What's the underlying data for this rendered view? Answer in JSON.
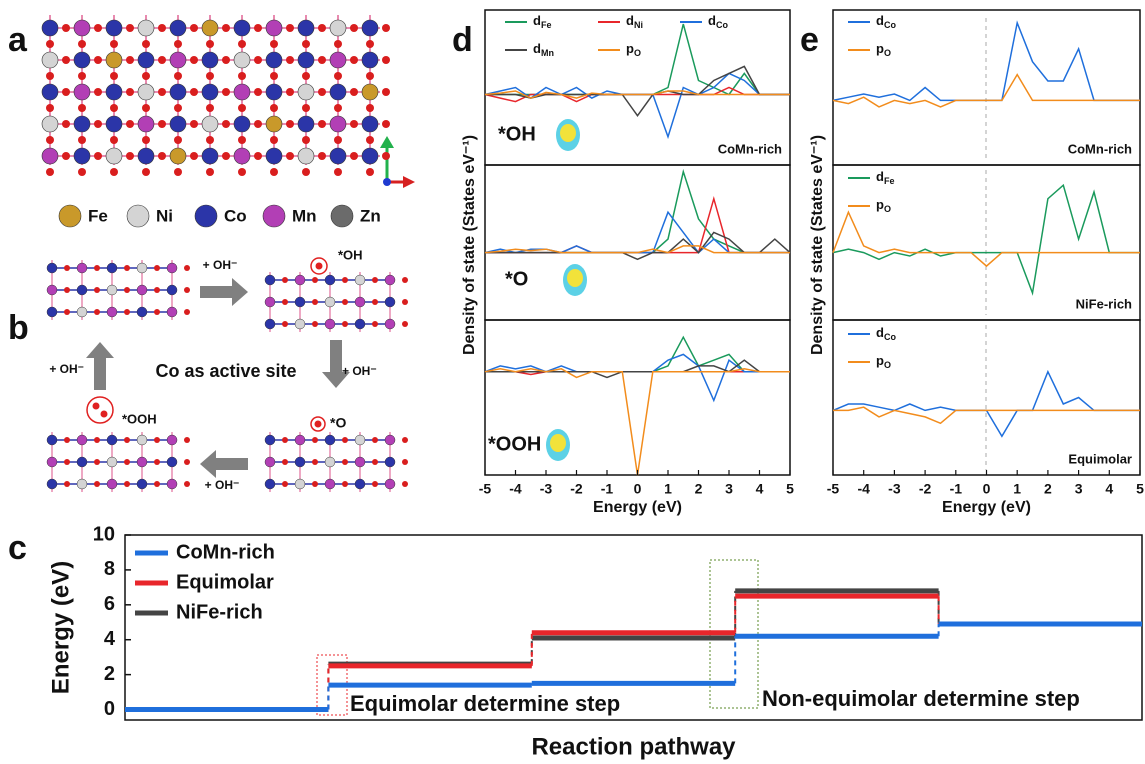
{
  "panel_labels": [
    "a",
    "b",
    "c",
    "d",
    "e"
  ],
  "panel_a": {
    "legend": [
      "Fe",
      "Ni",
      "Co",
      "Mn",
      "Zn"
    ],
    "colors": [
      "#c9992a",
      "#d4d4d4",
      "#2b35a8",
      "#b23fb5",
      "#6b6b6b"
    ]
  },
  "panel_b": {
    "steps": [
      "+ OH⁻",
      "+ OH⁻",
      "+ OH⁻",
      "+ OH⁻"
    ],
    "intermediates": [
      "*OH",
      "*O",
      "*OOH"
    ],
    "center": "Co as active site"
  },
  "chart_data": [
    {
      "type": "step",
      "ylabel": "Energy (eV)",
      "xlabel": "Reaction pathway",
      "categories": [
        null,
        null,
        null,
        null,
        null
      ],
      "ylim": [
        -0.6,
        10
      ],
      "yticks": [
        0,
        2,
        4,
        6,
        8,
        10
      ],
      "series": [
        {
          "name": "CoMn-rich",
          "color": "#1f6fdc",
          "values": [
            0,
            1.4,
            1.5,
            4.2,
            4.9
          ]
        },
        {
          "name": "Equimolar",
          "color": "#e8262b",
          "values": [
            0,
            2.5,
            4.4,
            6.5,
            4.9
          ]
        },
        {
          "name": "NiFe-rich",
          "color": "#444444",
          "values": [
            0,
            2.6,
            4.1,
            6.8,
            4.9
          ]
        }
      ],
      "annotations": [
        {
          "text": "Equimolar determine step",
          "color": "#e8262b"
        },
        {
          "text": "Non-equimolar determine step",
          "color": "#5a8a2a"
        }
      ]
    },
    {
      "type": "line",
      "ylabel": "Density of  state (States eV⁻¹)",
      "inset": "*OH",
      "label": "CoMn-rich",
      "x": [
        -5,
        -4.5,
        -4,
        -3.5,
        -3,
        -2.5,
        -2,
        -1.5,
        -1,
        -0.5,
        0,
        0.5,
        1,
        1.5,
        2,
        2.5,
        3,
        3.5,
        4,
        4.5,
        5
      ],
      "xlim": [
        -5,
        5
      ],
      "ylim": [
        -1,
        1.2
      ],
      "series": [
        {
          "name": "d",
          "sub": "Fe",
          "color": "#1a9a5c",
          "values": [
            0,
            0,
            0,
            0,
            0,
            0,
            0,
            0,
            0,
            0,
            0,
            0,
            0.1,
            1.0,
            0.2,
            0.1,
            0,
            0.3,
            0,
            0,
            0
          ]
        },
        {
          "name": "d",
          "sub": "Ni",
          "color": "#e8262b",
          "values": [
            0,
            -0.05,
            -0.1,
            0,
            0,
            0,
            -0.1,
            0,
            0,
            0,
            0,
            0,
            0,
            0,
            0,
            0,
            0.1,
            0,
            0,
            0,
            0
          ]
        },
        {
          "name": "d",
          "sub": "Co",
          "color": "#1f6fdc",
          "values": [
            0,
            0.05,
            0.1,
            -0.05,
            0.1,
            0,
            0.1,
            -0.05,
            0.05,
            0,
            0,
            0,
            -0.6,
            0.1,
            0,
            0.1,
            0.3,
            0.2,
            0,
            0,
            0
          ]
        },
        {
          "name": "d",
          "sub": "Mn",
          "color": "#444444",
          "values": [
            0,
            0,
            0,
            -0.05,
            0,
            0,
            0,
            0,
            0,
            0,
            -0.3,
            0,
            0.05,
            0,
            0,
            0.2,
            0.3,
            0.4,
            0,
            0,
            0
          ]
        },
        {
          "name": "p",
          "sub": "O",
          "color": "#f28c1c",
          "values": [
            0,
            0.02,
            0.05,
            -0.05,
            0.03,
            0,
            -0.05,
            0.02,
            0,
            0,
            0,
            0,
            0.05,
            0.05,
            0,
            0,
            0,
            0,
            0,
            0,
            0
          ]
        }
      ]
    },
    {
      "type": "line",
      "inset": "*O",
      "x": [
        -5,
        -4.5,
        -4,
        -3.5,
        -3,
        -2.5,
        -2,
        -1.5,
        -1,
        -0.5,
        0,
        0.5,
        1,
        1.5,
        2,
        2.5,
        3,
        3.5,
        4,
        4.5,
        5
      ],
      "xlim": [
        -5,
        5
      ],
      "ylim": [
        -1,
        1.3
      ],
      "series": [
        {
          "color": "#1a9a5c",
          "values": [
            0,
            0,
            0,
            0,
            0,
            0,
            0,
            0,
            0,
            0,
            0,
            0,
            0.2,
            1.2,
            0.5,
            0.2,
            0.1,
            0,
            0,
            0,
            0
          ]
        },
        {
          "color": "#e8262b",
          "values": [
            0,
            0,
            0,
            0,
            0,
            0,
            0.1,
            0,
            0,
            0,
            0,
            0,
            0,
            0,
            0,
            0.8,
            0,
            0,
            0,
            0,
            0
          ]
        },
        {
          "color": "#1f6fdc",
          "values": [
            0,
            0.05,
            0,
            0.05,
            0.05,
            0,
            0.1,
            0,
            0,
            0,
            0,
            0,
            0.6,
            0.3,
            0,
            0.2,
            0,
            0,
            0,
            0,
            0
          ]
        },
        {
          "color": "#444444",
          "values": [
            0,
            0,
            0,
            0,
            0,
            0,
            0,
            0,
            0,
            0,
            -0.1,
            0,
            0,
            0.2,
            0,
            0.3,
            0.2,
            0,
            0,
            0.2,
            0
          ]
        },
        {
          "color": "#f28c1c",
          "values": [
            0,
            0.02,
            0.05,
            0.03,
            0.05,
            0,
            0,
            0,
            0,
            0,
            0,
            0.05,
            0,
            0.1,
            0.1,
            0,
            0,
            0,
            0,
            0,
            0
          ]
        }
      ]
    },
    {
      "type": "line",
      "inset": "*OOH",
      "xlabel": "Energy (eV)",
      "x": [
        -5,
        -4.5,
        -4,
        -3.5,
        -3,
        -2.5,
        -2,
        -1.5,
        -1,
        -0.5,
        0,
        0.5,
        1,
        1.5,
        2,
        2.5,
        3,
        3.5,
        4,
        4.5,
        5
      ],
      "xlim": [
        -5,
        5
      ],
      "ylim": [
        -1.8,
        0.9
      ],
      "xticks": [
        -5,
        -4,
        -3,
        -2,
        -1,
        0,
        1,
        2,
        3,
        4,
        5
      ],
      "series": [
        {
          "color": "#1a9a5c",
          "values": [
            0,
            0,
            0,
            0,
            0,
            0,
            0,
            0,
            0,
            0,
            0,
            0,
            0.1,
            0.6,
            0.1,
            0.2,
            0.3,
            0,
            0,
            0,
            0
          ]
        },
        {
          "color": "#e8262b",
          "values": [
            0,
            0,
            0,
            -0.05,
            0,
            0,
            0,
            0,
            0,
            0,
            0,
            0,
            0,
            0,
            0,
            0,
            0,
            0,
            0,
            0,
            0
          ]
        },
        {
          "color": "#1f6fdc",
          "values": [
            0,
            0.1,
            0.05,
            0.1,
            0,
            0.1,
            0,
            0,
            0,
            0,
            0,
            0,
            0.2,
            0.3,
            0.1,
            -0.5,
            0.2,
            0,
            0,
            0,
            0
          ]
        },
        {
          "color": "#444444",
          "values": [
            0,
            0,
            0,
            0,
            0,
            0,
            0,
            0,
            -0.1,
            0,
            0,
            0,
            0,
            0,
            0.1,
            0.1,
            0,
            0.2,
            0,
            0,
            0
          ]
        },
        {
          "color": "#f28c1c",
          "values": [
            0,
            0.05,
            0,
            0.05,
            0,
            0.05,
            -0.1,
            0,
            0,
            0,
            -1.8,
            0,
            0,
            0,
            0,
            0,
            0,
            0.05,
            0,
            0,
            0
          ]
        }
      ]
    },
    {
      "type": "line",
      "ylabel": "Density of state (States eV⁻¹)",
      "label": "CoMn-rich",
      "x": [
        -5,
        -4.5,
        -4,
        -3.5,
        -3,
        -2.5,
        -2,
        -1.5,
        -1,
        -0.5,
        0,
        0.5,
        1,
        1.5,
        2,
        2.5,
        3,
        3.5,
        4,
        4.5,
        5
      ],
      "xlim": [
        -5,
        5
      ],
      "ylim": [
        -1,
        1.4
      ],
      "series": [
        {
          "name": "d",
          "sub": "Co",
          "color": "#1f6fdc",
          "values": [
            0,
            0.05,
            0.1,
            0.05,
            0.1,
            0,
            0.2,
            0,
            0,
            0,
            0,
            0,
            1.2,
            0.6,
            0.3,
            0.3,
            0.8,
            0,
            0,
            0,
            0
          ]
        },
        {
          "name": "p",
          "sub": "O",
          "color": "#f28c1c",
          "values": [
            0,
            -0.05,
            0.05,
            -0.1,
            0,
            -0.05,
            0,
            -0.1,
            0,
            0,
            0,
            0,
            0.4,
            0,
            0,
            0,
            0,
            0,
            0,
            0,
            0
          ]
        }
      ]
    },
    {
      "type": "line",
      "label": "NiFe-rich",
      "x": [
        -5,
        -4.5,
        -4,
        -3.5,
        -3,
        -2.5,
        -2,
        -1.5,
        -1,
        -0.5,
        0,
        0.5,
        1,
        1.5,
        2,
        2.5,
        3,
        3.5,
        4,
        4.5,
        5
      ],
      "xlim": [
        -5,
        5
      ],
      "ylim": [
        -1,
        1.3
      ],
      "series": [
        {
          "name": "d",
          "sub": "Fe",
          "color": "#1a9a5c",
          "values": [
            0,
            0.05,
            0,
            -0.1,
            0,
            -0.05,
            0.05,
            -0.05,
            0,
            0,
            0,
            0,
            0,
            -0.6,
            0.8,
            1.0,
            0.2,
            0.9,
            0,
            0,
            0
          ]
        },
        {
          "name": "p",
          "sub": "O",
          "color": "#f28c1c",
          "values": [
            0,
            0.6,
            0.1,
            0,
            0.05,
            0,
            0,
            0,
            0,
            0,
            -0.2,
            0,
            0,
            0,
            0,
            0,
            0,
            0,
            0,
            0,
            0
          ]
        }
      ]
    },
    {
      "type": "line",
      "label": "Equimolar",
      "xlabel": "Energy (eV)",
      "x": [
        -5,
        -4.5,
        -4,
        -3.5,
        -3,
        -2.5,
        -2,
        -1.5,
        -1,
        -0.5,
        0,
        0.5,
        1,
        1.5,
        2,
        2.5,
        3,
        3.5,
        4,
        4.5,
        5
      ],
      "xlim": [
        -5,
        5
      ],
      "ylim": [
        -1,
        1.4
      ],
      "xticks": [
        -5,
        -4,
        -3,
        -2,
        -1,
        0,
        1,
        2,
        3,
        4,
        5
      ],
      "series": [
        {
          "name": "d",
          "sub": "Co",
          "color": "#1f6fdc",
          "values": [
            0,
            0.1,
            0.1,
            0.05,
            0,
            0.1,
            0,
            0.05,
            0,
            0,
            0,
            -0.4,
            0,
            0,
            0.6,
            0.1,
            0.2,
            0,
            0,
            0,
            0
          ]
        },
        {
          "name": "p",
          "sub": "O",
          "color": "#f28c1c",
          "values": [
            0,
            0,
            0.05,
            -0.1,
            0,
            -0.05,
            -0.1,
            -0.2,
            0,
            0,
            0,
            0,
            0,
            0,
            0,
            0,
            0,
            0,
            0,
            0,
            0
          ]
        }
      ]
    }
  ]
}
